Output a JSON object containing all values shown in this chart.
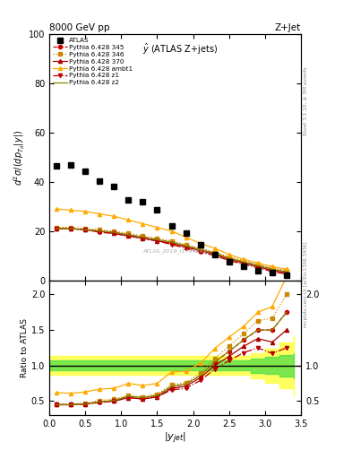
{
  "title_top": "8000 GeV pp",
  "title_right": "Z+Jet",
  "plot_label": "$\\hat{y}$ (ATLAS Z+jets)",
  "ylabel_main": "$d^2\\sigma/(dp_{T_d}|y|)$",
  "ylabel_ratio": "Ratio to ATLAS",
  "xlabel": "$|y_{jet}|$",
  "right_label_top": "Rivet 3.1.10, ≥ 3M events",
  "right_label_bottom": "mcplots.cern.ch [arXiv:1306.3436]",
  "watermark": "ATLAS_2019_I1744242",
  "atlas_x": [
    0.1,
    0.3,
    0.5,
    0.7,
    0.9,
    1.1,
    1.3,
    1.5,
    1.7,
    1.9,
    2.1,
    2.3,
    2.5,
    2.7,
    2.9,
    3.1,
    3.3
  ],
  "atlas_y": [
    46.5,
    47.0,
    44.5,
    40.5,
    38.0,
    32.5,
    32.0,
    28.5,
    22.0,
    19.0,
    14.5,
    10.5,
    7.5,
    5.5,
    4.0,
    3.0,
    2.0
  ],
  "py345_x": [
    0.1,
    0.3,
    0.5,
    0.7,
    0.9,
    1.1,
    1.3,
    1.5,
    1.7,
    1.9,
    2.1,
    2.3,
    2.5,
    2.7,
    2.9,
    3.1,
    3.3
  ],
  "py345_y": [
    21.0,
    21.0,
    20.5,
    20.0,
    19.5,
    18.5,
    17.5,
    16.5,
    15.5,
    14.0,
    12.5,
    11.0,
    9.0,
    7.5,
    6.0,
    4.5,
    3.5
  ],
  "py346_x": [
    0.1,
    0.3,
    0.5,
    0.7,
    0.9,
    1.1,
    1.3,
    1.5,
    1.7,
    1.9,
    2.1,
    2.3,
    2.5,
    2.7,
    2.9,
    3.1,
    3.3
  ],
  "py346_y": [
    21.5,
    21.5,
    21.0,
    20.5,
    20.0,
    19.0,
    18.0,
    17.0,
    16.0,
    14.5,
    13.0,
    11.5,
    9.5,
    8.0,
    6.5,
    5.0,
    4.0
  ],
  "py370_x": [
    0.1,
    0.3,
    0.5,
    0.7,
    0.9,
    1.1,
    1.3,
    1.5,
    1.7,
    1.9,
    2.1,
    2.3,
    2.5,
    2.7,
    2.9,
    3.1,
    3.3
  ],
  "py370_y": [
    21.0,
    21.0,
    20.5,
    20.0,
    19.0,
    18.0,
    17.0,
    16.0,
    15.0,
    13.5,
    12.0,
    10.5,
    8.5,
    7.0,
    5.5,
    4.0,
    3.0
  ],
  "pyambt1_x": [
    0.1,
    0.3,
    0.5,
    0.7,
    0.9,
    1.1,
    1.3,
    1.5,
    1.7,
    1.9,
    2.1,
    2.3,
    2.5,
    2.7,
    2.9,
    3.1,
    3.3
  ],
  "pyambt1_y": [
    29.0,
    28.5,
    28.0,
    27.0,
    26.0,
    24.5,
    23.0,
    21.5,
    20.0,
    17.5,
    15.0,
    13.0,
    10.5,
    8.5,
    7.0,
    5.5,
    4.5
  ],
  "pyz1_x": [
    0.1,
    0.3,
    0.5,
    0.7,
    0.9,
    1.1,
    1.3,
    1.5,
    1.7,
    1.9,
    2.1,
    2.3,
    2.5,
    2.7,
    2.9,
    3.1,
    3.3
  ],
  "pyz1_y": [
    21.0,
    21.0,
    20.5,
    19.5,
    19.0,
    18.0,
    17.0,
    16.0,
    14.5,
    13.0,
    11.5,
    10.0,
    8.0,
    6.5,
    5.0,
    3.5,
    2.5
  ],
  "pyz2_x": [
    0.1,
    0.3,
    0.5,
    0.7,
    0.9,
    1.1,
    1.3,
    1.5,
    1.7,
    1.9,
    2.1,
    2.3,
    2.5,
    2.7,
    2.9,
    3.1,
    3.3
  ],
  "pyz2_y": [
    21.0,
    21.0,
    20.5,
    20.0,
    19.5,
    18.5,
    17.5,
    16.5,
    15.5,
    14.0,
    12.5,
    11.0,
    9.0,
    7.5,
    6.0,
    4.5,
    3.5
  ],
  "ratio_x": [
    0.1,
    0.3,
    0.5,
    0.7,
    0.9,
    1.1,
    1.3,
    1.5,
    1.7,
    1.9,
    2.1,
    2.3,
    2.5,
    2.7,
    2.9,
    3.1,
    3.3
  ],
  "ratio_py345": [
    0.45,
    0.45,
    0.46,
    0.49,
    0.51,
    0.57,
    0.55,
    0.58,
    0.7,
    0.74,
    0.86,
    1.05,
    1.2,
    1.36,
    1.5,
    1.5,
    1.75
  ],
  "ratio_py346": [
    0.46,
    0.46,
    0.47,
    0.51,
    0.53,
    0.58,
    0.56,
    0.6,
    0.73,
    0.76,
    0.9,
    1.1,
    1.27,
    1.45,
    1.63,
    1.67,
    2.0
  ],
  "ratio_py370": [
    0.45,
    0.45,
    0.46,
    0.49,
    0.5,
    0.55,
    0.53,
    0.56,
    0.68,
    0.71,
    0.83,
    1.0,
    1.13,
    1.27,
    1.38,
    1.33,
    1.5
  ],
  "ratio_pyambt1": [
    0.62,
    0.61,
    0.63,
    0.67,
    0.68,
    0.75,
    0.72,
    0.75,
    0.91,
    0.92,
    1.03,
    1.24,
    1.4,
    1.55,
    1.75,
    1.83,
    2.25
  ],
  "ratio_pyz1": [
    0.45,
    0.45,
    0.46,
    0.48,
    0.5,
    0.55,
    0.53,
    0.56,
    0.66,
    0.68,
    0.79,
    0.95,
    1.07,
    1.18,
    1.25,
    1.17,
    1.25
  ],
  "ratio_pyz2": [
    0.45,
    0.45,
    0.46,
    0.49,
    0.51,
    0.57,
    0.55,
    0.58,
    0.71,
    0.74,
    0.86,
    1.05,
    1.2,
    1.36,
    1.5,
    1.5,
    1.75
  ],
  "band_x": [
    0.0,
    0.2,
    0.4,
    0.6,
    0.8,
    1.0,
    1.2,
    1.4,
    1.6,
    1.8,
    2.0,
    2.2,
    2.4,
    2.6,
    2.8,
    3.0,
    3.2,
    3.4
  ],
  "band_green_low": [
    0.93,
    0.93,
    0.93,
    0.93,
    0.93,
    0.93,
    0.93,
    0.93,
    0.93,
    0.93,
    0.93,
    0.93,
    0.93,
    0.93,
    0.9,
    0.88,
    0.85,
    0.82
  ],
  "band_green_high": [
    1.07,
    1.07,
    1.07,
    1.07,
    1.07,
    1.07,
    1.07,
    1.07,
    1.07,
    1.07,
    1.07,
    1.07,
    1.07,
    1.07,
    1.1,
    1.12,
    1.15,
    1.18
  ],
  "band_yellow_low": [
    0.87,
    0.87,
    0.87,
    0.87,
    0.87,
    0.87,
    0.87,
    0.87,
    0.87,
    0.87,
    0.87,
    0.87,
    0.87,
    0.87,
    0.82,
    0.76,
    0.68,
    0.58
  ],
  "band_yellow_high": [
    1.13,
    1.13,
    1.13,
    1.13,
    1.13,
    1.13,
    1.13,
    1.13,
    1.13,
    1.13,
    1.13,
    1.13,
    1.13,
    1.13,
    1.18,
    1.24,
    1.32,
    1.42
  ],
  "color_345": "#cc0000",
  "color_346": "#cc8800",
  "color_370": "#aa0000",
  "color_ambt1": "#ffaa00",
  "color_z1": "#bb0000",
  "color_z2": "#888800",
  "color_atlas": "#000000",
  "ylim_main": [
    0,
    100
  ],
  "ylim_ratio": [
    0.3,
    2.2
  ],
  "xlim": [
    0.0,
    3.5
  ],
  "yticks_main": [
    0,
    20,
    40,
    60,
    80,
    100
  ],
  "yticks_ratio": [
    0.5,
    1.0,
    1.5,
    2.0
  ]
}
